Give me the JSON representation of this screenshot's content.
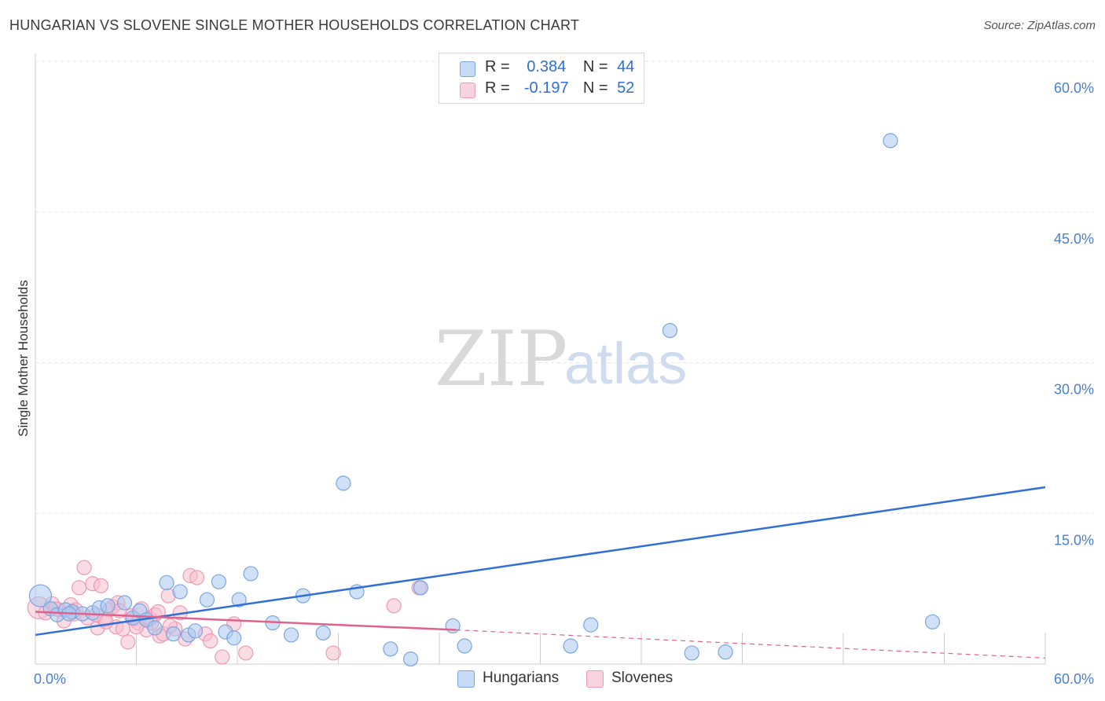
{
  "title": "HUNGARIAN VS SLOVENE SINGLE MOTHER HOUSEHOLDS CORRELATION CHART",
  "source": "Source: ZipAtlas.com",
  "watermark": {
    "zip": "ZIP",
    "atlas": "atlas"
  },
  "colors": {
    "hungarians_fill": "#a9c8f0",
    "hungarians_stroke": "#7aa6e0",
    "hungarians_line": "#2f6fd6",
    "slovenes_fill": "#f6bfd0",
    "slovenes_stroke": "#ee9ab3",
    "slovenes_line": "#e0628c",
    "grid": "#e6e6e6",
    "axis": "#cccccc",
    "tick_text": "#4a7fd0"
  },
  "stats": {
    "hungarians": {
      "r_label": "R =",
      "r_value": "0.384",
      "n_label": "N =",
      "n_value": "44"
    },
    "slovenes": {
      "r_label": "R =",
      "r_value": "-0.197",
      "n_label": "N =",
      "n_value": "52"
    }
  },
  "legend": {
    "hungarians": "Hungarians",
    "slovenes": "Slovenes"
  },
  "chart_data": {
    "type": "scatter",
    "title": "HUNGARIAN VS SLOVENE SINGLE MOTHER HOUSEHOLDS CORRELATION CHART",
    "xlabel": "",
    "ylabel": "Single Mother Households",
    "xlim": [
      0,
      60
    ],
    "ylim": [
      0,
      60
    ],
    "x_tick_labels": [
      "0.0%",
      "60.0%"
    ],
    "y_ticks": [
      15,
      30,
      45,
      60
    ],
    "y_tick_labels": [
      "15.0%",
      "30.0%",
      "45.0%",
      "60.0%"
    ],
    "grid": true,
    "series": [
      {
        "name": "Hungarians",
        "points": [
          [
            0.3,
            6.8,
            14
          ],
          [
            0.9,
            5.5,
            9
          ],
          [
            1.3,
            4.9,
            9
          ],
          [
            1.8,
            5.4,
            9
          ],
          [
            2.2,
            5.2,
            9
          ],
          [
            2.8,
            5.0,
            9
          ],
          [
            3.4,
            5.1,
            9
          ],
          [
            3.8,
            5.6,
            9
          ],
          [
            4.3,
            5.8,
            9
          ],
          [
            5.3,
            6.1,
            9
          ],
          [
            5.8,
            4.6,
            9
          ],
          [
            6.2,
            5.3,
            9
          ],
          [
            6.6,
            4.4,
            9
          ],
          [
            7.1,
            3.6,
            9
          ],
          [
            7.8,
            8.1,
            9
          ],
          [
            8.2,
            3.0,
            9
          ],
          [
            8.6,
            7.2,
            9
          ],
          [
            9.1,
            2.9,
            9
          ],
          [
            9.5,
            3.3,
            9
          ],
          [
            10.2,
            6.4,
            9
          ],
          [
            10.9,
            8.2,
            9
          ],
          [
            11.3,
            3.2,
            9
          ],
          [
            11.8,
            2.6,
            9
          ],
          [
            12.1,
            6.4,
            9
          ],
          [
            12.8,
            9.0,
            9
          ],
          [
            14.1,
            4.1,
            9
          ],
          [
            15.2,
            2.9,
            9
          ],
          [
            15.9,
            6.8,
            9
          ],
          [
            17.1,
            3.1,
            9
          ],
          [
            18.3,
            18.0,
            9
          ],
          [
            19.1,
            7.2,
            9
          ],
          [
            21.1,
            1.5,
            9
          ],
          [
            22.3,
            0.5,
            9
          ],
          [
            22.9,
            7.6,
            9
          ],
          [
            24.8,
            3.8,
            9
          ],
          [
            25.5,
            1.8,
            9
          ],
          [
            31.8,
            1.8,
            9
          ],
          [
            33.0,
            3.9,
            9
          ],
          [
            37.7,
            33.2,
            9
          ],
          [
            39.0,
            1.1,
            9
          ],
          [
            41.0,
            1.2,
            9
          ],
          [
            50.8,
            52.1,
            9
          ],
          [
            53.3,
            4.2,
            9
          ],
          [
            2.0,
            5.0,
            9
          ]
        ]
      },
      {
        "name": "Slovenes",
        "points": [
          [
            0.2,
            5.6,
            14
          ],
          [
            0.6,
            5.1,
            9
          ],
          [
            1.0,
            6.0,
            9
          ],
          [
            1.4,
            5.4,
            9
          ],
          [
            1.7,
            4.3,
            9
          ],
          [
            2.1,
            5.9,
            9
          ],
          [
            2.4,
            5.4,
            9
          ],
          [
            2.6,
            7.6,
            9
          ],
          [
            2.9,
            9.6,
            9
          ],
          [
            3.1,
            4.6,
            9
          ],
          [
            3.4,
            8.0,
            9
          ],
          [
            3.7,
            3.6,
            9
          ],
          [
            3.9,
            7.8,
            9
          ],
          [
            4.1,
            4.4,
            9
          ],
          [
            4.4,
            5.4,
            9
          ],
          [
            4.6,
            5.7,
            9
          ],
          [
            4.8,
            3.7,
            9
          ],
          [
            4.9,
            6.1,
            9
          ],
          [
            5.2,
            3.5,
            9
          ],
          [
            5.5,
            2.2,
            9
          ],
          [
            5.7,
            4.8,
            9
          ],
          [
            5.9,
            4.5,
            9
          ],
          [
            6.1,
            4.1,
            9
          ],
          [
            6.3,
            5.5,
            9
          ],
          [
            6.6,
            3.4,
            9
          ],
          [
            6.9,
            4.1,
            9
          ],
          [
            7.1,
            4.9,
            9
          ],
          [
            7.4,
            2.8,
            9
          ],
          [
            7.6,
            3.0,
            9
          ],
          [
            7.9,
            6.8,
            9
          ],
          [
            8.3,
            3.5,
            9
          ],
          [
            8.6,
            5.1,
            9
          ],
          [
            8.9,
            2.5,
            9
          ],
          [
            9.2,
            8.8,
            9
          ],
          [
            9.6,
            8.6,
            9
          ],
          [
            10.1,
            3.0,
            9
          ],
          [
            10.4,
            2.3,
            9
          ],
          [
            11.1,
            0.7,
            9
          ],
          [
            11.8,
            4.0,
            9
          ],
          [
            12.5,
            1.1,
            9
          ],
          [
            17.7,
            1.1,
            9
          ],
          [
            21.3,
            5.8,
            9
          ],
          [
            22.8,
            7.6,
            9
          ],
          [
            1.2,
            5.5,
            9
          ],
          [
            2.3,
            5.0,
            9
          ],
          [
            3.6,
            4.9,
            9
          ],
          [
            4.2,
            4.2,
            9
          ],
          [
            5.0,
            5.3,
            9
          ],
          [
            6.0,
            3.7,
            9
          ],
          [
            6.8,
            4.5,
            9
          ],
          [
            7.3,
            5.2,
            9
          ],
          [
            8.0,
            3.8,
            9
          ]
        ]
      }
    ],
    "trend_lines": {
      "hungarians": {
        "solid": [
          [
            0,
            2.9
          ],
          [
            60,
            17.6
          ]
        ]
      },
      "slovenes": {
        "solid": [
          [
            0,
            5.2
          ],
          [
            25,
            3.4
          ]
        ],
        "dashed": [
          [
            25,
            3.4
          ],
          [
            60,
            0.6
          ]
        ]
      }
    }
  }
}
